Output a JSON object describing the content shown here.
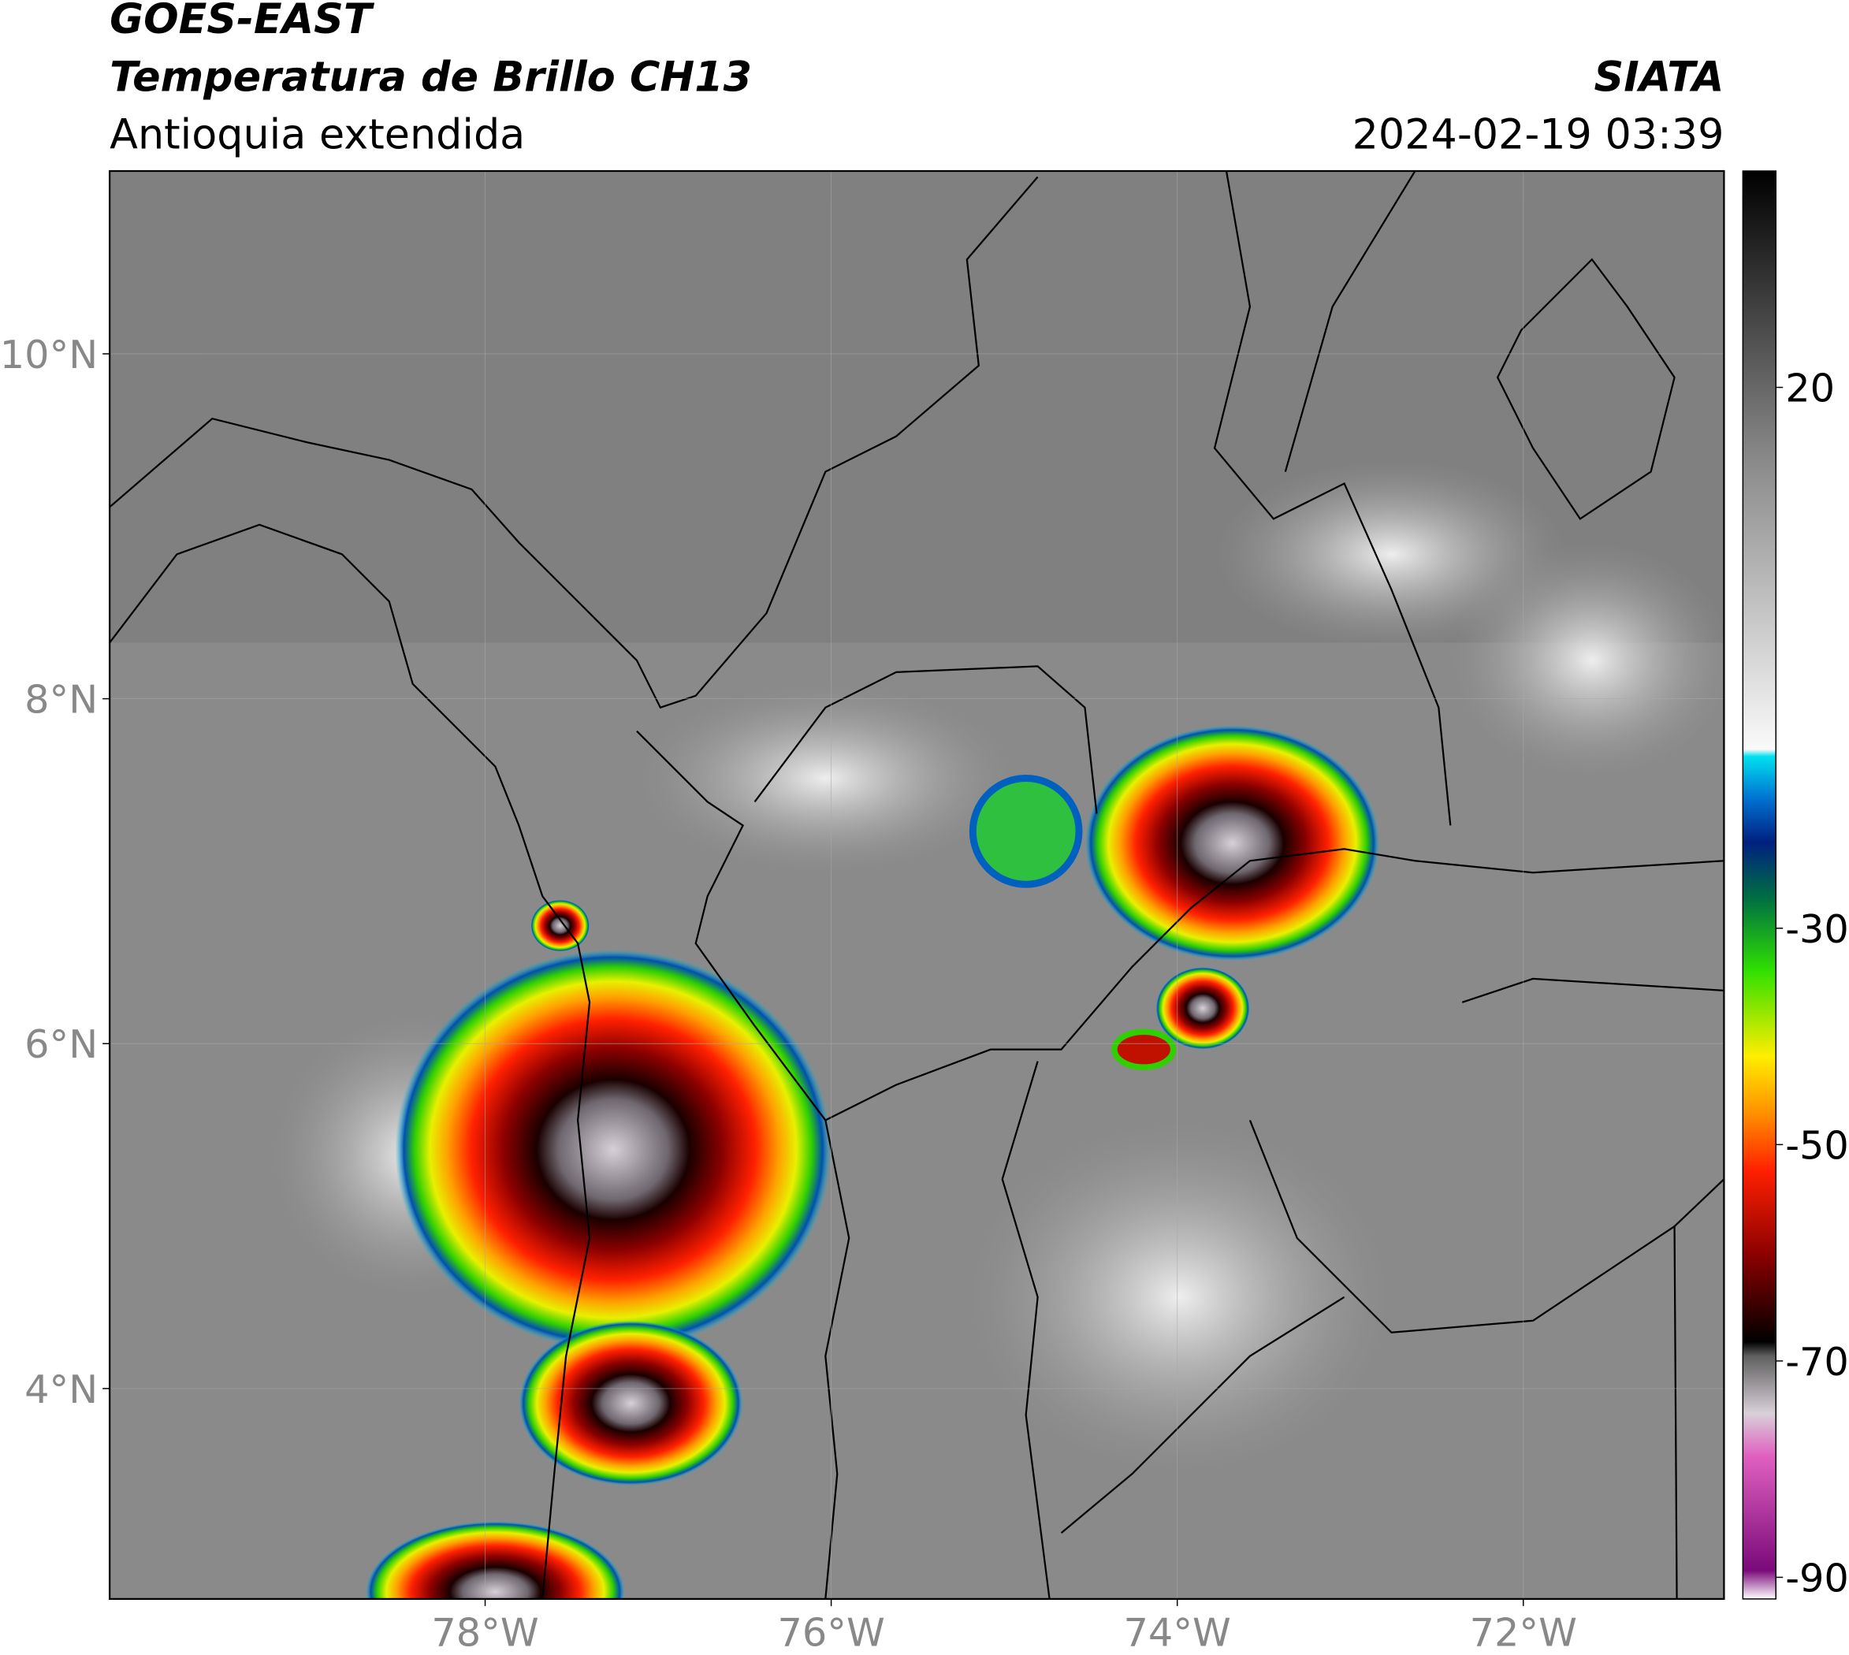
{
  "header": {
    "title": "GOES-EAST",
    "subtitle": "Temperatura de Brillo CH13",
    "region": "Antioquia extendida",
    "source": "SIATA",
    "datetime": "2024-02-19 03:39"
  },
  "map": {
    "xlim": [
      -80.17,
      -70.84
    ],
    "ylim": [
      2.78,
      11.06
    ],
    "xticks": [
      {
        "value": -78,
        "label": "78°W"
      },
      {
        "value": -76,
        "label": "76°W"
      },
      {
        "value": -74,
        "label": "74°W"
      },
      {
        "value": -72,
        "label": "72°W"
      }
    ],
    "yticks": [
      {
        "value": 4,
        "label": "4°N"
      },
      {
        "value": 6,
        "label": "6°N"
      },
      {
        "value": 8,
        "label": "8°N"
      },
      {
        "value": 10,
        "label": "10°N"
      }
    ],
    "grid": true
  },
  "colorbar": {
    "clim": [
      -92,
      40
    ],
    "ticks": [
      20,
      -30,
      -50,
      -70,
      -90
    ]
  }
}
